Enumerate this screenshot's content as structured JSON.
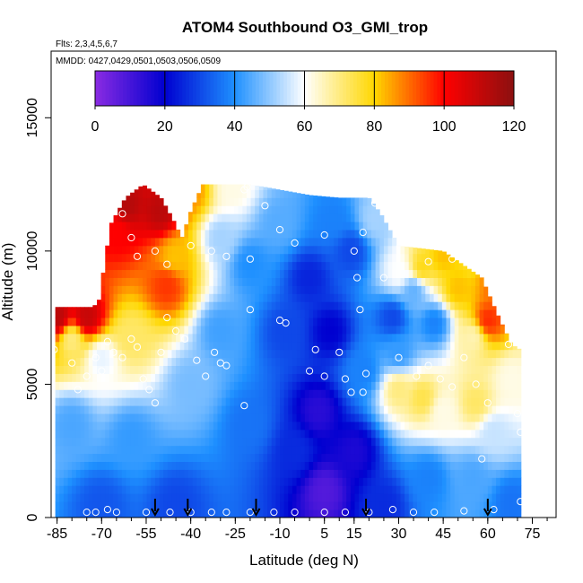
{
  "chart_data": {
    "type": "heatmap",
    "title": "ATOM4 Southbound O3_GMI_trop",
    "flights_note": "Flts: 2,3,4,5,6,7",
    "dates_note": "MMDD: 0427,0429,0501,0503,0506,0509",
    "xlabel": "Latitude (deg N)",
    "ylabel": "Altitude (m)",
    "xlim": [
      -87,
      83
    ],
    "ylim": [
      0,
      17500
    ],
    "x_ticks": [
      -85,
      -70,
      -55,
      -40,
      -25,
      -10,
      5,
      15,
      30,
      45,
      60,
      75
    ],
    "y_ticks": [
      0,
      5000,
      10000,
      15000
    ],
    "colorbar": {
      "min": 0,
      "max": 120,
      "ticks": [
        0,
        20,
        40,
        60,
        80,
        100,
        120
      ],
      "colors": [
        "#8a2be2",
        "#0000d0",
        "#1e90ff",
        "#ffffff",
        "#ffd700",
        "#ff0000",
        "#8b1010"
      ]
    },
    "profile_top_altitude": [
      [
        -86,
        6400
      ],
      [
        -85,
        7900
      ],
      [
        -73,
        7900
      ],
      [
        -71,
        8100
      ],
      [
        -67,
        11000
      ],
      [
        -62,
        12000
      ],
      [
        -56,
        12500
      ],
      [
        -50,
        12000
      ],
      [
        -46,
        11200
      ],
      [
        -43,
        10500
      ],
      [
        -40,
        11500
      ],
      [
        -36,
        12500
      ],
      [
        -30,
        12500
      ],
      [
        -20,
        12500
      ],
      [
        -10,
        12300
      ],
      [
        0,
        12100
      ],
      [
        10,
        12000
      ],
      [
        20,
        12000
      ],
      [
        24,
        11400
      ],
      [
        30,
        10200
      ],
      [
        45,
        10000
      ],
      [
        58,
        9000
      ],
      [
        63,
        7700
      ],
      [
        68,
        6500
      ],
      [
        71,
        6300
      ]
    ],
    "field": [
      {
        "lat": -85,
        "alt": 7500,
        "o3": 112
      },
      {
        "lat": -75,
        "alt": 7500,
        "o3": 110
      },
      {
        "lat": -62,
        "alt": 11700,
        "o3": 113
      },
      {
        "lat": -50,
        "alt": 11500,
        "o3": 112
      },
      {
        "lat": -40,
        "alt": 12200,
        "o3": 86
      },
      {
        "lat": -26,
        "alt": 12400,
        "o3": 62
      },
      {
        "lat": -65,
        "alt": 10800,
        "o3": 100
      },
      {
        "lat": -45,
        "alt": 9800,
        "o3": 82
      },
      {
        "lat": -48,
        "alt": 8700,
        "o3": 95
      },
      {
        "lat": -30,
        "alt": 10500,
        "o3": 52
      },
      {
        "lat": -80,
        "alt": 6700,
        "o3": 70
      },
      {
        "lat": -70,
        "alt": 6000,
        "o3": 58
      },
      {
        "lat": -60,
        "alt": 6800,
        "o3": 72
      },
      {
        "lat": -80,
        "alt": 3500,
        "o3": 44
      },
      {
        "lat": -60,
        "alt": 3000,
        "o3": 42
      },
      {
        "lat": -40,
        "alt": 5000,
        "o3": 48
      },
      {
        "lat": -70,
        "alt": 500,
        "o3": 32
      },
      {
        "lat": -45,
        "alt": 500,
        "o3": 30
      },
      {
        "lat": -30,
        "alt": 7000,
        "o3": 43
      },
      {
        "lat": -20,
        "alt": 3500,
        "o3": 36
      },
      {
        "lat": -20,
        "alt": 9500,
        "o3": 40
      },
      {
        "lat": -10,
        "alt": 11000,
        "o3": 45
      },
      {
        "lat": -8,
        "alt": 7000,
        "o3": 30
      },
      {
        "lat": -5,
        "alt": 2500,
        "o3": 26
      },
      {
        "lat": 0,
        "alt": 9000,
        "o3": 25
      },
      {
        "lat": 3,
        "alt": 4000,
        "o3": 14
      },
      {
        "lat": 5,
        "alt": 1000,
        "o3": 8
      },
      {
        "lat": 7,
        "alt": 7000,
        "o3": 20
      },
      {
        "lat": 8,
        "alt": 11200,
        "o3": 38
      },
      {
        "lat": 15,
        "alt": 2500,
        "o3": 16
      },
      {
        "lat": 14,
        "alt": 10000,
        "o3": 30
      },
      {
        "lat": 18,
        "alt": 5500,
        "o3": 38
      },
      {
        "lat": 22,
        "alt": 11200,
        "o3": 52
      },
      {
        "lat": 25,
        "alt": 500,
        "o3": 26
      },
      {
        "lat": 30,
        "alt": 9200,
        "o3": 60
      },
      {
        "lat": 38,
        "alt": 9400,
        "o3": 78
      },
      {
        "lat": 45,
        "alt": 9800,
        "o3": 82
      },
      {
        "lat": 55,
        "alt": 9600,
        "o3": 76
      },
      {
        "lat": 30,
        "alt": 4800,
        "o3": 70
      },
      {
        "lat": 38,
        "alt": 4500,
        "o3": 74
      },
      {
        "lat": 45,
        "alt": 4000,
        "o3": 62
      },
      {
        "lat": 30,
        "alt": 6200,
        "o3": 42
      },
      {
        "lat": 42,
        "alt": 7300,
        "o3": 38
      },
      {
        "lat": 55,
        "alt": 6800,
        "o3": 66
      },
      {
        "lat": 60,
        "alt": 7400,
        "o3": 96
      },
      {
        "lat": 56,
        "alt": 4300,
        "o3": 72
      },
      {
        "lat": 62,
        "alt": 3200,
        "o3": 55
      },
      {
        "lat": 68,
        "alt": 5200,
        "o3": 62
      },
      {
        "lat": 40,
        "alt": 1500,
        "o3": 38
      },
      {
        "lat": 55,
        "alt": 1500,
        "o3": 44
      },
      {
        "lat": 68,
        "alt": 600,
        "o3": 36
      },
      {
        "lat": 35,
        "alt": 8500,
        "o3": 46
      },
      {
        "lat": 63,
        "alt": 8700,
        "o3": 90
      },
      {
        "lat": 60,
        "alt": 9800,
        "o3": 102
      },
      {
        "lat": 50,
        "alt": 8600,
        "o3": 82
      },
      {
        "lat": 28,
        "alt": 7500,
        "o3": 30
      }
    ],
    "flight_points": [
      [
        -75,
        200
      ],
      [
        -72,
        200
      ],
      [
        -68,
        300
      ],
      [
        -65,
        200
      ],
      [
        -55,
        200
      ],
      [
        -47,
        200
      ],
      [
        -40,
        200
      ],
      [
        -33,
        200
      ],
      [
        -28,
        200
      ],
      [
        -20,
        200
      ],
      [
        -12,
        200
      ],
      [
        -5,
        200
      ],
      [
        5,
        200
      ],
      [
        12,
        200
      ],
      [
        20,
        200
      ],
      [
        28,
        300
      ],
      [
        35,
        200
      ],
      [
        42,
        200
      ],
      [
        52,
        250
      ],
      [
        62,
        300
      ],
      [
        71,
        600
      ],
      [
        -86,
        6300
      ],
      [
        -80,
        5800
      ],
      [
        -78,
        4800
      ],
      [
        -75,
        5300
      ],
      [
        -72,
        6000
      ],
      [
        -70,
        5500
      ],
      [
        -68,
        6600
      ],
      [
        -66,
        6200
      ],
      [
        -63,
        6000
      ],
      [
        -60,
        6700
      ],
      [
        -58,
        6400
      ],
      [
        -56,
        5200
      ],
      [
        -54,
        4800
      ],
      [
        -52,
        4300
      ],
      [
        -50,
        6200
      ],
      [
        -48,
        7500
      ],
      [
        -45,
        7000
      ],
      [
        -42,
        6700
      ],
      [
        -38,
        5900
      ],
      [
        -35,
        5300
      ],
      [
        -32,
        6200
      ],
      [
        -30,
        5800
      ],
      [
        -28,
        5700
      ],
      [
        -22,
        4200
      ],
      [
        -20,
        7800
      ],
      [
        -10,
        7400
      ],
      [
        -8,
        7300
      ],
      [
        0,
        5500
      ],
      [
        2,
        6300
      ],
      [
        5,
        5300
      ],
      [
        10,
        6200
      ],
      [
        12,
        5200
      ],
      [
        14,
        4700
      ],
      [
        16,
        9000
      ],
      [
        17,
        7800
      ],
      [
        18,
        4700
      ],
      [
        19,
        5400
      ],
      [
        25,
        9000
      ],
      [
        30,
        6000
      ],
      [
        36,
        5300
      ],
      [
        40,
        5700
      ],
      [
        44,
        5200
      ],
      [
        48,
        4900
      ],
      [
        52,
        6000
      ],
      [
        56,
        5000
      ],
      [
        58,
        2200
      ],
      [
        60,
        4300
      ],
      [
        62,
        8500
      ],
      [
        67,
        6500
      ],
      [
        70,
        3900
      ],
      [
        71,
        3200
      ],
      [
        -63,
        11400
      ],
      [
        -60,
        10500
      ],
      [
        -58,
        9800
      ],
      [
        -52,
        10000
      ],
      [
        -48,
        9500
      ],
      [
        -40,
        10200
      ],
      [
        -33,
        10000
      ],
      [
        -28,
        9800
      ],
      [
        -20,
        9700
      ],
      [
        -15,
        11700
      ],
      [
        -10,
        10800
      ],
      [
        -5,
        10300
      ],
      [
        5,
        10600
      ],
      [
        15,
        10000
      ],
      [
        18,
        10700
      ],
      [
        22,
        11800
      ],
      [
        40,
        9600
      ],
      [
        48,
        9700
      ],
      [
        -22,
        12300
      ],
      [
        -21,
        12400
      ]
    ],
    "arrow_latitudes": [
      -52,
      -41,
      -18,
      19,
      60
    ]
  }
}
